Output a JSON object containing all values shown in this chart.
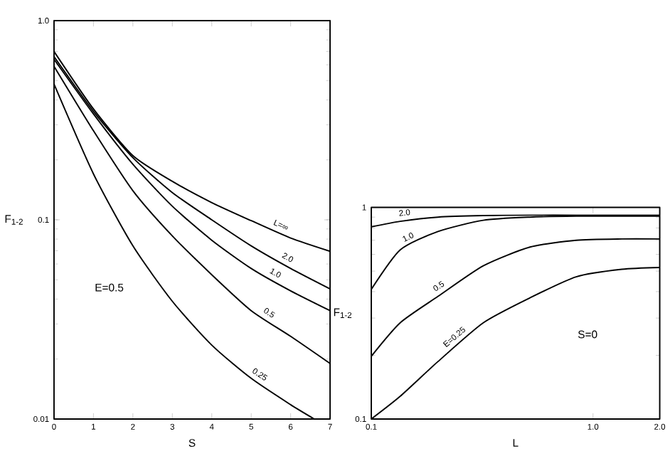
{
  "chart_data": [
    {
      "type": "line",
      "xlabel": "S",
      "ylabel": "F$_{1-2}$",
      "log": "y",
      "xlim": [
        0,
        7
      ],
      "ylim": [
        0.01,
        1
      ],
      "xticks": [
        0,
        1,
        2,
        3,
        4,
        5,
        6,
        7
      ],
      "yticks": [
        0.01,
        0.1,
        {
          "value": 1,
          "label": "1.0"
        }
      ],
      "annotations": [
        "E=0.5"
      ],
      "x": [
        0,
        1,
        2,
        3,
        4,
        5,
        6,
        7
      ],
      "series": [
        {
          "name": "L=∞",
          "color": "#000000",
          "values": [
            0.7,
            0.36,
            0.21,
            0.156,
            0.122,
            0.099,
            0.081,
            0.0695
          ]
        },
        {
          "name": "2.0",
          "color": "#000000",
          "values": [
            0.66,
            0.35,
            0.205,
            0.137,
            0.1,
            0.074,
            0.057,
            0.045
          ]
        },
        {
          "name": "1.0",
          "color": "#000000",
          "values": [
            0.64,
            0.34,
            0.19,
            0.117,
            0.079,
            0.057,
            0.044,
            0.035
          ]
        },
        {
          "name": "0.5",
          "color": "#000000",
          "values": [
            0.59,
            0.28,
            0.14,
            0.083,
            0.053,
            0.035,
            0.026,
            0.019
          ]
        },
        {
          "name": "0.25",
          "color": "#000000",
          "x": [
            0,
            1,
            2,
            3,
            4,
            5,
            6,
            6.6
          ],
          "values": [
            0.48,
            0.17,
            0.074,
            0.039,
            0.0235,
            0.016,
            0.0118,
            0.01
          ]
        }
      ]
    },
    {
      "type": "line",
      "xlabel": "L",
      "ylabel": "F$_{1-2}$",
      "log": "xy",
      "xlim": [
        0.1,
        2
      ],
      "ylim": [
        0.1,
        1
      ],
      "xticks": [
        0.1,
        {
          "value": 1,
          "label": "1.0"
        },
        {
          "value": 2,
          "label": "2.0"
        }
      ],
      "yticks": [
        0.1,
        1
      ],
      "annotations": [
        "S=0"
      ],
      "x": [
        0.1,
        0.135,
        0.2,
        0.32,
        0.52,
        0.84,
        1.35,
        2
      ],
      "series": [
        {
          "name": "2.0",
          "color": "#000000",
          "values": [
            0.81,
            0.86,
            0.9,
            0.915,
            0.92,
            0.92,
            0.92,
            0.92
          ]
        },
        {
          "name": "1.0",
          "color": "#000000",
          "values": [
            0.41,
            0.63,
            0.77,
            0.87,
            0.9,
            0.91,
            0.91,
            0.91
          ]
        },
        {
          "name": "0.5",
          "color": "#000000",
          "values": [
            0.198,
            0.285,
            0.38,
            0.53,
            0.65,
            0.7,
            0.71,
            0.71
          ]
        },
        {
          "name": "E=0.25",
          "color": "#000000",
          "values": [
            0.1,
            0.128,
            0.187,
            0.285,
            0.374,
            0.47,
            0.51,
            0.52
          ]
        }
      ]
    }
  ]
}
